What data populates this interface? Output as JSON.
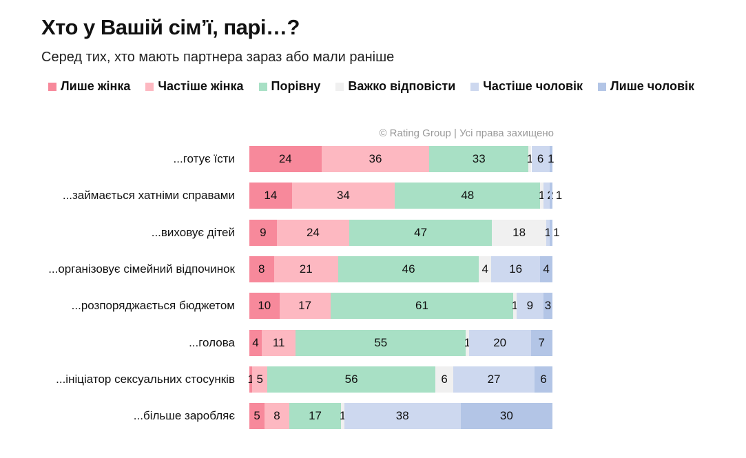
{
  "title": "Хто у Вашій сім’ї, парі…?",
  "subtitle": "Серед тих, хто мають партнера зараз або мали раніше",
  "credit": "© Rating Group | Усі права захищено",
  "chart_data": {
    "type": "bar",
    "orientation": "horizontal",
    "stacked": true,
    "unit": "%",
    "legend_position": "top",
    "categories": [
      "...готує їсти",
      "...займається хатніми справами",
      "...виховує дітей",
      "...організовує сімейний відпочинок",
      "...розпоряджається бюджетом",
      "...голова",
      "...ініціатор сексуальних стосунків",
      "...більше заробляє"
    ],
    "series": [
      {
        "name": "Лише жінка",
        "color": "#f7899b",
        "values": [
          24,
          14,
          9,
          8,
          10,
          4,
          1,
          5
        ]
      },
      {
        "name": "Частіше  жінка",
        "color": "#fdb8c1",
        "values": [
          36,
          34,
          24,
          21,
          17,
          11,
          5,
          8
        ]
      },
      {
        "name": "Порівну",
        "color": "#a8e0c5",
        "values": [
          33,
          48,
          47,
          46,
          61,
          55,
          56,
          17
        ]
      },
      {
        "name": "Важко відповісти",
        "color": "#f0f0f0",
        "values": [
          1,
          1,
          18,
          4,
          1,
          1,
          6,
          1
        ]
      },
      {
        "name": "Частіше  чоловік",
        "color": "#cdd8ef",
        "values": [
          6,
          2,
          1,
          16,
          9,
          20,
          27,
          38
        ]
      },
      {
        "name": "Лише чоловік",
        "color": "#b3c5e6",
        "values": [
          1,
          1,
          1,
          4,
          3,
          7,
          6,
          30
        ]
      }
    ]
  }
}
